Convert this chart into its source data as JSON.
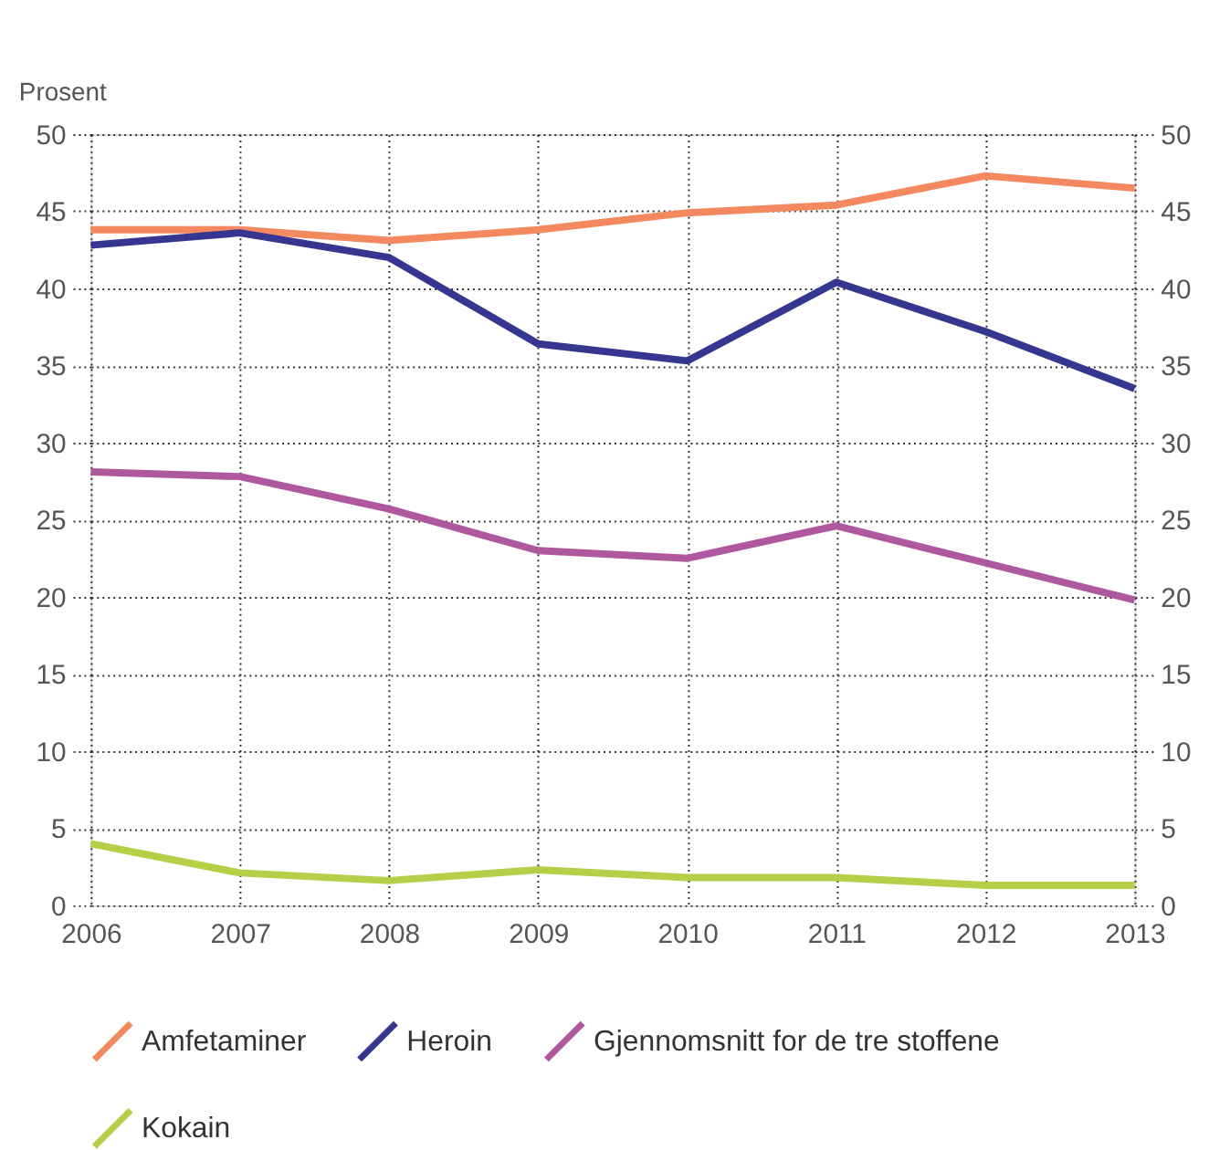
{
  "chart_data": {
    "type": "line",
    "ylabel": "Prosent",
    "x": [
      2006,
      2007,
      2008,
      2009,
      2010,
      2011,
      2012,
      2013
    ],
    "series": [
      {
        "name": "Amfetaminer",
        "color": "#f4895f",
        "values": [
          43.8,
          43.8,
          43.1,
          43.8,
          44.9,
          45.4,
          47.3,
          46.5
        ]
      },
      {
        "name": "Heroin",
        "color": "#35368f",
        "values": [
          42.8,
          43.6,
          42.0,
          36.4,
          35.3,
          40.4,
          37.2,
          33.5
        ]
      },
      {
        "name": "Gjennomsnitt for de tre stoffene",
        "color": "#b0589e",
        "values": [
          28.1,
          27.8,
          25.7,
          23.0,
          22.5,
          24.6,
          22.2,
          19.8
        ]
      },
      {
        "name": "Kokain",
        "color": "#b5cf48",
        "values": [
          4.0,
          2.1,
          1.6,
          2.3,
          1.8,
          1.8,
          1.3,
          1.3
        ]
      }
    ],
    "xlim": [
      2006,
      2013
    ],
    "xticks": [
      2006,
      2007,
      2008,
      2009,
      2010,
      2011,
      2012,
      2013
    ],
    "ylim": [
      0,
      50
    ],
    "yticks": [
      0,
      5,
      10,
      15,
      20,
      25,
      30,
      35,
      40,
      45,
      50
    ],
    "y2lim": [
      0,
      50
    ],
    "y2ticks": [
      0,
      5,
      10,
      15,
      20,
      25,
      30,
      35,
      40,
      45,
      50
    ],
    "grid": true,
    "legend": "bottom",
    "marker": "none",
    "line_style": "solid"
  }
}
